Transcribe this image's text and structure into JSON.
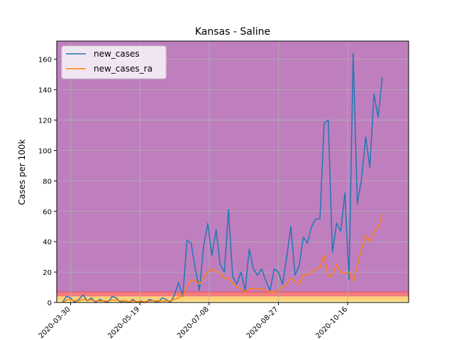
{
  "chart_data": {
    "type": "line",
    "title": "Kansas - Saline",
    "xlabel": "",
    "ylabel": "Cases per 100k",
    "x_tick_labels": [
      "2020-03-30",
      "2020-05-19",
      "2020-07-08",
      "2020-08-27",
      "2020-10-16"
    ],
    "x_range": [
      "2020-03-20",
      "2020-11-29"
    ],
    "ylim": [
      0,
      172
    ],
    "y_ticks": [
      0,
      20,
      40,
      60,
      80,
      100,
      120,
      140,
      160
    ],
    "grid": true,
    "legend_position": "upper-left",
    "background_bands": [
      {
        "from": 0,
        "to": 1,
        "color": "#fff59a"
      },
      {
        "from": 1,
        "to": 4,
        "color": "#ffd27a"
      },
      {
        "from": 4,
        "to": 7,
        "color": "#f47c7c"
      },
      {
        "from": 7,
        "to": 172,
        "color": "#bf7fbf"
      }
    ],
    "colors": {
      "new_cases": "#1f77b4",
      "new_cases_ra": "#ff7f0e",
      "band_line": "#d94a6e"
    },
    "x": [
      "2020-03-24",
      "2020-03-27",
      "2020-03-30",
      "2020-04-02",
      "2020-04-05",
      "2020-04-08",
      "2020-04-11",
      "2020-04-14",
      "2020-04-17",
      "2020-04-20",
      "2020-04-23",
      "2020-04-26",
      "2020-04-29",
      "2020-05-02",
      "2020-05-05",
      "2020-05-08",
      "2020-05-11",
      "2020-05-14",
      "2020-05-17",
      "2020-05-20",
      "2020-05-23",
      "2020-05-26",
      "2020-05-29",
      "2020-06-01",
      "2020-06-04",
      "2020-06-07",
      "2020-06-10",
      "2020-06-13",
      "2020-06-16",
      "2020-06-19",
      "2020-06-22",
      "2020-06-25",
      "2020-06-28",
      "2020-07-01",
      "2020-07-04",
      "2020-07-07",
      "2020-07-10",
      "2020-07-13",
      "2020-07-16",
      "2020-07-19",
      "2020-07-22",
      "2020-07-25",
      "2020-07-28",
      "2020-07-31",
      "2020-08-03",
      "2020-08-06",
      "2020-08-09",
      "2020-08-12",
      "2020-08-15",
      "2020-08-18",
      "2020-08-21",
      "2020-08-24",
      "2020-08-27",
      "2020-08-30",
      "2020-09-02",
      "2020-09-05",
      "2020-09-08",
      "2020-09-11",
      "2020-09-14",
      "2020-09-17",
      "2020-09-20",
      "2020-09-23",
      "2020-09-26",
      "2020-09-29",
      "2020-10-02",
      "2020-10-05",
      "2020-10-08",
      "2020-10-11",
      "2020-10-14",
      "2020-10-17",
      "2020-10-20",
      "2020-10-23",
      "2020-10-26",
      "2020-10-29",
      "2020-11-01",
      "2020-11-04",
      "2020-11-07",
      "2020-11-10"
    ],
    "series": [
      {
        "name": "new_cases",
        "values": [
          0,
          4,
          3,
          0,
          2,
          5,
          1,
          3,
          0,
          2,
          1,
          0,
          4,
          3,
          0,
          1,
          0,
          2,
          0,
          1,
          0,
          2,
          1,
          0,
          3,
          2,
          0,
          5,
          13,
          4,
          41,
          39,
          22,
          8,
          37,
          52,
          31,
          48,
          25,
          20,
          61,
          17,
          12,
          20,
          8,
          35,
          22,
          18,
          22,
          14,
          8,
          22,
          20,
          12,
          30,
          50,
          18,
          24,
          43,
          39,
          50,
          55,
          55,
          118,
          120,
          33,
          52,
          47,
          72,
          15,
          164,
          65,
          81,
          109,
          89,
          137,
          122,
          148
        ]
      },
      {
        "name": "new_cases_ra",
        "values": [
          0,
          1.5,
          2,
          1,
          1,
          2,
          1.5,
          1.5,
          1,
          1,
          1,
          1,
          1.5,
          1.5,
          1,
          1,
          0.5,
          1,
          0.5,
          0.5,
          0.5,
          1,
          1,
          1,
          1,
          1,
          1,
          2,
          3,
          5,
          10,
          15,
          14,
          12,
          16,
          20,
          22,
          21,
          19,
          16,
          16,
          13,
          10,
          9,
          7,
          9,
          9,
          9,
          9,
          8,
          7,
          7,
          8,
          10,
          12,
          16,
          14,
          12,
          18,
          18,
          20,
          22,
          23,
          31,
          17,
          18,
          25,
          20,
          19,
          20,
          14,
          24,
          35,
          44,
          40,
          47,
          49,
          58
        ]
      }
    ]
  }
}
